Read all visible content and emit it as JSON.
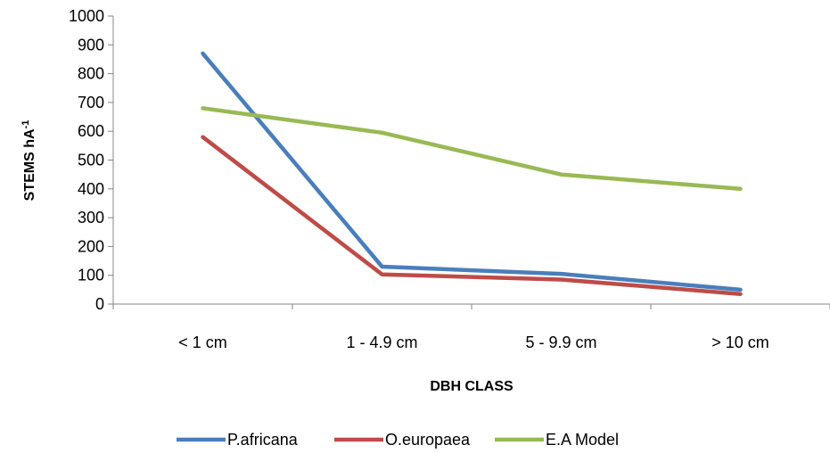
{
  "chart_data": {
    "type": "line",
    "title": "",
    "xlabel": "DBH CLASS",
    "ylabel": "STEMS hA",
    "ylabel_superscript": "-1",
    "categories": [
      "< 1 cm",
      "1 - 4.9 cm",
      "5 - 9.9 cm",
      "> 10 cm"
    ],
    "ylim": [
      0,
      1000
    ],
    "ytick_step": 100,
    "grid": false,
    "legend_position": "bottom",
    "series": [
      {
        "name": "P.africana",
        "color": "#4a7ebb",
        "values": [
          870,
          130,
          105,
          50
        ]
      },
      {
        "name": "O.europaea",
        "color": "#be4b48",
        "values": [
          580,
          103,
          85,
          35
        ]
      },
      {
        "name": "E.A Model",
        "color": "#98b954",
        "values": [
          680,
          595,
          450,
          400
        ]
      }
    ]
  }
}
